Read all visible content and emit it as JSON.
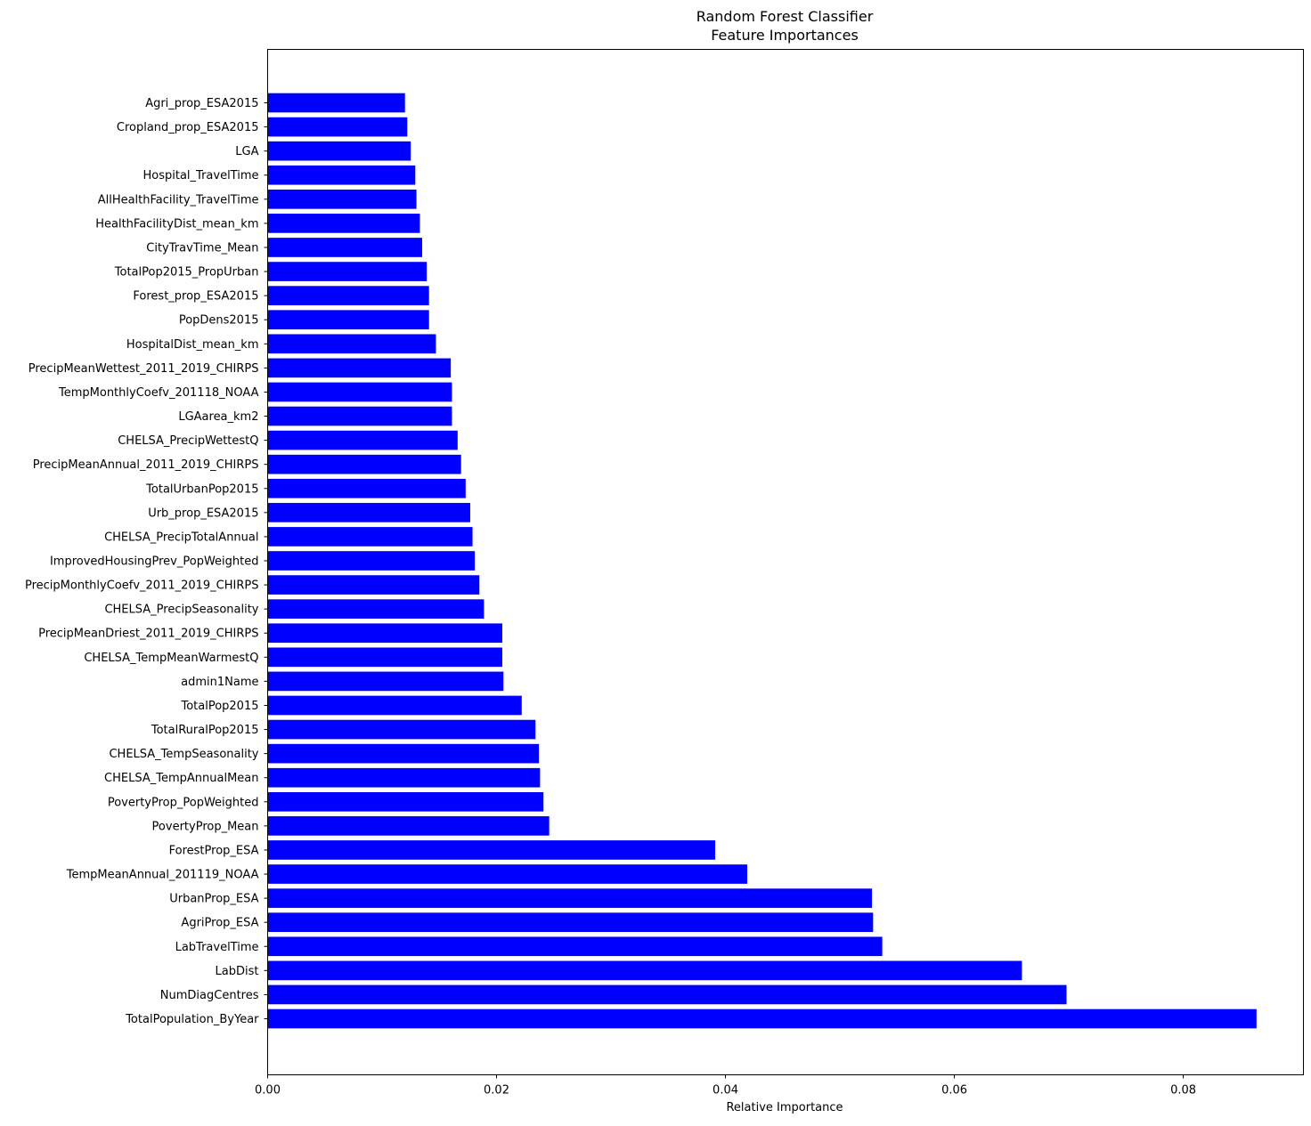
{
  "chart_data": {
    "type": "bar",
    "orientation": "horizontal",
    "title_lines": [
      "Random Forest Classifier",
      "Feature Importances"
    ],
    "xlabel": "Relative Importance",
    "ylabel": "",
    "xlim": [
      0,
      0.0905
    ],
    "xticks": [
      {
        "value": 0.0,
        "label": "0.00"
      },
      {
        "value": 0.02,
        "label": "0.02"
      },
      {
        "value": 0.04,
        "label": "0.04"
      },
      {
        "value": 0.06,
        "label": "0.06"
      },
      {
        "value": 0.08,
        "label": "0.08"
      }
    ],
    "grid": false,
    "bar_color": "#0000ff",
    "categories": [
      "Agri_prop_ESA2015",
      "Cropland_prop_ESA2015",
      "LGA",
      "Hospital_TravelTime",
      "AllHealthFacility_TravelTime",
      "HealthFacilityDist_mean_km",
      "CityTravTime_Mean",
      "TotalPop2015_PropUrban",
      "Forest_prop_ESA2015",
      "PopDens2015",
      "HospitalDist_mean_km",
      "PrecipMeanWettest_2011_2019_CHIRPS",
      "TempMonthlyCoefv_201118_NOAA",
      "LGAarea_km2",
      "CHELSA_PrecipWettestQ",
      "PrecipMeanAnnual_2011_2019_CHIRPS",
      "TotalUrbanPop2015",
      "Urb_prop_ESA2015",
      "CHELSA_PrecipTotalAnnual",
      "ImprovedHousingPrev_PopWeighted",
      "PrecipMonthlyCoefv_2011_2019_CHIRPS",
      "CHELSA_PrecipSeasonality",
      "PrecipMeanDriest_2011_2019_CHIRPS",
      "CHELSA_TempMeanWarmestQ",
      "admin1Name",
      "TotalPop2015",
      "TotalRuralPop2015",
      "CHELSA_TempSeasonality",
      "CHELSA_TempAnnualMean",
      "PovertyProp_PopWeighted",
      "PovertyProp_Mean",
      "ForestProp_ESA",
      "TempMeanAnnual_201119_NOAA",
      "UrbanProp_ESA",
      "AgriProp_ESA",
      "LabTravelTime",
      "LabDist",
      "NumDiagCentres",
      "TotalPopulation_ByYear"
    ],
    "values": [
      0.012,
      0.0122,
      0.0125,
      0.0129,
      0.013,
      0.0133,
      0.0135,
      0.0139,
      0.0141,
      0.0141,
      0.0147,
      0.016,
      0.0161,
      0.0161,
      0.0166,
      0.0169,
      0.0173,
      0.0177,
      0.0179,
      0.0181,
      0.0185,
      0.0189,
      0.0205,
      0.0205,
      0.0206,
      0.0222,
      0.0234,
      0.0237,
      0.0238,
      0.0241,
      0.0246,
      0.0391,
      0.0419,
      0.0528,
      0.0529,
      0.0537,
      0.0659,
      0.0698,
      0.0864
    ]
  }
}
